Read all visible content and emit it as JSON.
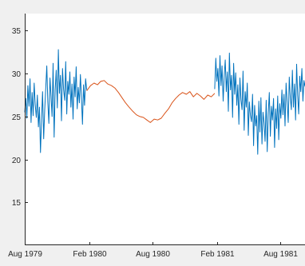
{
  "chart_data": {
    "type": "line",
    "title": "",
    "xlabel": "",
    "ylabel": "",
    "x_ticks": [
      "Aug 1979",
      "Feb 1980",
      "Aug 1980",
      "Feb 1981",
      "Aug 1981"
    ],
    "x_tick_dates": [
      "1979-08-01",
      "1980-02-01",
      "1980-08-01",
      "1981-02-01",
      "1981-08-01"
    ],
    "xlim": [
      "1979-08-01",
      "1981-10-10"
    ],
    "y_ticks": [
      15,
      20,
      25,
      30,
      35
    ],
    "ylim": [
      10,
      37
    ],
    "grid": false,
    "legend": "none",
    "colors": {
      "observed": "#0072bd",
      "gap_fill": "#d95319",
      "axes_bg": "#ffffff",
      "figure_bg": "#f0f0f0",
      "axis": "#262626"
    },
    "series": [
      {
        "color": "#0072bd",
        "x": [
          "1979-08-01",
          "1979-08-04",
          "1979-08-07",
          "1979-08-10",
          "1979-08-13",
          "1979-08-16",
          "1979-08-19",
          "1979-08-22",
          "1979-08-25",
          "1979-08-28",
          "1979-08-31",
          "1979-09-03",
          "1979-09-06",
          "1979-09-09",
          "1979-09-12",
          "1979-09-15",
          "1979-09-18",
          "1979-09-21",
          "1979-09-24",
          "1979-09-27",
          "1979-09-30",
          "1979-10-03",
          "1979-10-06",
          "1979-10-09",
          "1979-10-12",
          "1979-10-15",
          "1979-10-18",
          "1979-10-21",
          "1979-10-24",
          "1979-10-27",
          "1979-10-30",
          "1979-11-02",
          "1979-11-05",
          "1979-11-08",
          "1979-11-11",
          "1979-11-14",
          "1979-11-17",
          "1979-11-20",
          "1979-11-23",
          "1979-11-26",
          "1979-11-29",
          "1979-12-02",
          "1979-12-05",
          "1979-12-08",
          "1979-12-11",
          "1979-12-14",
          "1979-12-17",
          "1979-12-20",
          "1979-12-23",
          "1979-12-26",
          "1979-12-29",
          "1980-01-01",
          "1980-01-04",
          "1980-01-07",
          "1980-01-10",
          "1980-01-13",
          "1980-01-16",
          "1980-01-19",
          "1980-01-22",
          "1980-01-25"
        ],
        "y": [
          25.5,
          27.1,
          24.8,
          28.6,
          26.2,
          29.4,
          24.3,
          27.8,
          25.1,
          28.9,
          26.4,
          24.9,
          27.5,
          23.8,
          26.1,
          20.8,
          24.6,
          27.9,
          22.4,
          25.8,
          28.3,
          30.9,
          26.7,
          24.2,
          29.5,
          27.4,
          25.0,
          31.2,
          22.6,
          28.1,
          30.4,
          26.0,
          32.8,
          27.7,
          29.8,
          24.5,
          30.6,
          28.2,
          26.9,
          31.4,
          25.3,
          29.1,
          27.6,
          30.2,
          26.1,
          28.8,
          24.7,
          29.6,
          27.3,
          30.8,
          25.9,
          28.4,
          26.6,
          29.9,
          27.2,
          24.1,
          28.7,
          26.3,
          29.4,
          28.1
        ]
      },
      {
        "color": "#d95319",
        "x": [
          "1980-01-25",
          "1980-02-05",
          "1980-02-15",
          "1980-02-25",
          "1980-03-05",
          "1980-03-15",
          "1980-03-25",
          "1980-04-05",
          "1980-04-15",
          "1980-04-25",
          "1980-05-05",
          "1980-05-15",
          "1980-05-25",
          "1980-06-05",
          "1980-06-15",
          "1980-06-25",
          "1980-07-05",
          "1980-07-15",
          "1980-07-25",
          "1980-08-05",
          "1980-08-15",
          "1980-08-25",
          "1980-09-05",
          "1980-09-15",
          "1980-09-25",
          "1980-10-05",
          "1980-10-15",
          "1980-10-25",
          "1980-11-05",
          "1980-11-15",
          "1980-11-25",
          "1980-12-05",
          "1980-12-15",
          "1980-12-25",
          "1981-01-05",
          "1981-01-15",
          "1981-01-25"
        ],
        "y": [
          28.0,
          28.6,
          28.9,
          28.7,
          29.1,
          29.2,
          28.8,
          28.6,
          28.3,
          27.8,
          27.2,
          26.6,
          26.1,
          25.6,
          25.2,
          25.0,
          24.9,
          24.6,
          24.3,
          24.7,
          24.6,
          24.8,
          25.4,
          25.9,
          26.6,
          27.1,
          27.5,
          27.8,
          27.6,
          27.9,
          27.3,
          27.7,
          27.4,
          27.0,
          27.5,
          27.3,
          27.7
        ]
      },
      {
        "color": "#0072bd",
        "x": [
          "1981-01-25",
          "1981-01-28",
          "1981-01-31",
          "1981-02-03",
          "1981-02-06",
          "1981-02-09",
          "1981-02-12",
          "1981-02-15",
          "1981-02-18",
          "1981-02-21",
          "1981-02-24",
          "1981-02-27",
          "1981-03-02",
          "1981-03-05",
          "1981-03-08",
          "1981-03-11",
          "1981-03-14",
          "1981-03-17",
          "1981-03-20",
          "1981-03-23",
          "1981-03-26",
          "1981-03-29",
          "1981-04-01",
          "1981-04-04",
          "1981-04-07",
          "1981-04-10",
          "1981-04-13",
          "1981-04-16",
          "1981-04-19",
          "1981-04-22",
          "1981-04-25",
          "1981-04-28",
          "1981-05-01",
          "1981-05-04",
          "1981-05-07",
          "1981-05-10",
          "1981-05-13",
          "1981-05-16",
          "1981-05-19",
          "1981-05-22",
          "1981-05-25",
          "1981-05-28",
          "1981-05-31",
          "1981-06-03",
          "1981-06-06",
          "1981-06-09",
          "1981-06-12",
          "1981-06-15",
          "1981-06-18",
          "1981-06-21",
          "1981-06-24",
          "1981-06-27",
          "1981-06-30",
          "1981-07-03",
          "1981-07-06",
          "1981-07-09",
          "1981-07-12",
          "1981-07-15",
          "1981-07-18",
          "1981-07-21",
          "1981-07-24",
          "1981-07-27",
          "1981-07-30",
          "1981-08-02",
          "1981-08-05",
          "1981-08-08",
          "1981-08-11",
          "1981-08-14",
          "1981-08-17",
          "1981-08-20",
          "1981-08-23",
          "1981-08-26",
          "1981-08-29",
          "1981-09-01",
          "1981-09-04",
          "1981-09-07",
          "1981-09-10",
          "1981-09-13",
          "1981-09-16",
          "1981-09-19",
          "1981-09-22",
          "1981-09-25",
          "1981-09-28",
          "1981-10-01",
          "1981-10-04",
          "1981-10-07",
          "1981-10-10"
        ],
        "y": [
          28.2,
          31.8,
          29.1,
          30.6,
          27.4,
          32.1,
          28.6,
          30.9,
          26.8,
          29.7,
          31.6,
          27.9,
          30.2,
          25.6,
          32.4,
          28.1,
          29.8,
          24.9,
          31.2,
          27.6,
          30.1,
          26.3,
          28.7,
          24.1,
          29.5,
          27.0,
          25.8,
          30.3,
          23.4,
          27.9,
          26.1,
          28.9,
          22.8,
          26.7,
          25.2,
          24.4,
          27.6,
          21.6,
          26.3,
          23.9,
          25.1,
          20.6,
          26.8,
          23.2,
          27.2,
          21.8,
          25.5,
          24.3,
          22.1,
          26.9,
          20.9,
          25.4,
          27.8,
          22.7,
          26.2,
          24.6,
          27.1,
          21.4,
          25.9,
          23.6,
          27.4,
          22.3,
          26.5,
          24.8,
          28.1,
          25.2,
          27.6,
          23.9,
          28.9,
          26.6,
          24.3,
          29.6,
          27.2,
          25.8,
          30.4,
          26.1,
          28.8,
          24.6,
          31.1,
          27.5,
          25.3,
          29.7,
          27.9,
          30.6,
          26.8,
          29.2,
          28.5
        ]
      }
    ]
  }
}
